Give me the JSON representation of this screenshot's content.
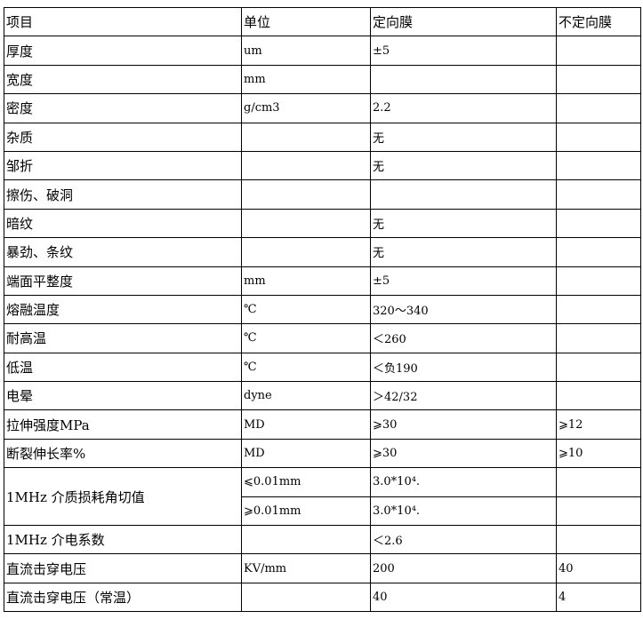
{
  "header": [
    "项目",
    "单位",
    "定向膜",
    "不定向膜"
  ],
  "rows": [
    [
      "厚度",
      "um",
      "±5",
      ""
    ],
    [
      "宽度",
      "mm",
      "",
      ""
    ],
    [
      "密度",
      "g/cm3",
      "2.2",
      ""
    ],
    [
      "杂质",
      "",
      "无",
      ""
    ],
    [
      "邹折",
      "",
      "无",
      ""
    ],
    [
      "擦伤、破洞",
      "",
      "",
      ""
    ],
    [
      "暗纹",
      "",
      "无",
      ""
    ],
    [
      "暴劲、条纹",
      "",
      "无",
      ""
    ],
    [
      "端面平整度",
      "mm",
      "±5",
      ""
    ],
    [
      "熔融温度",
      "℃",
      "320～340",
      ""
    ],
    [
      "耐高温",
      "℃",
      "＜260",
      ""
    ],
    [
      "低温",
      "℃",
      "＜负190",
      ""
    ],
    [
      "电晕",
      "dyne",
      "＞42/32",
      ""
    ],
    [
      "拉伸强度MPa",
      "MD",
      "⩾30",
      "⩾12"
    ],
    [
      "断裂伸长率%",
      "MD",
      "⩾30",
      "⩾10"
    ]
  ],
  "loss": {
    "item": "1MHz 介质损耗角切值",
    "sub": [
      [
        "⩽0.01mm",
        "3.0*10⁴.",
        ""
      ],
      [
        "⩾0.01mm",
        "3.0*10⁴.",
        ""
      ]
    ]
  },
  "rows2": [
    [
      "1MHz 介电系数",
      "",
      "＜2.6",
      ""
    ],
    [
      "直流击穿电压",
      "KV/mm",
      "200",
      "40"
    ],
    [
      "直流击穿电压（常温）",
      "",
      "40",
      "4"
    ]
  ]
}
